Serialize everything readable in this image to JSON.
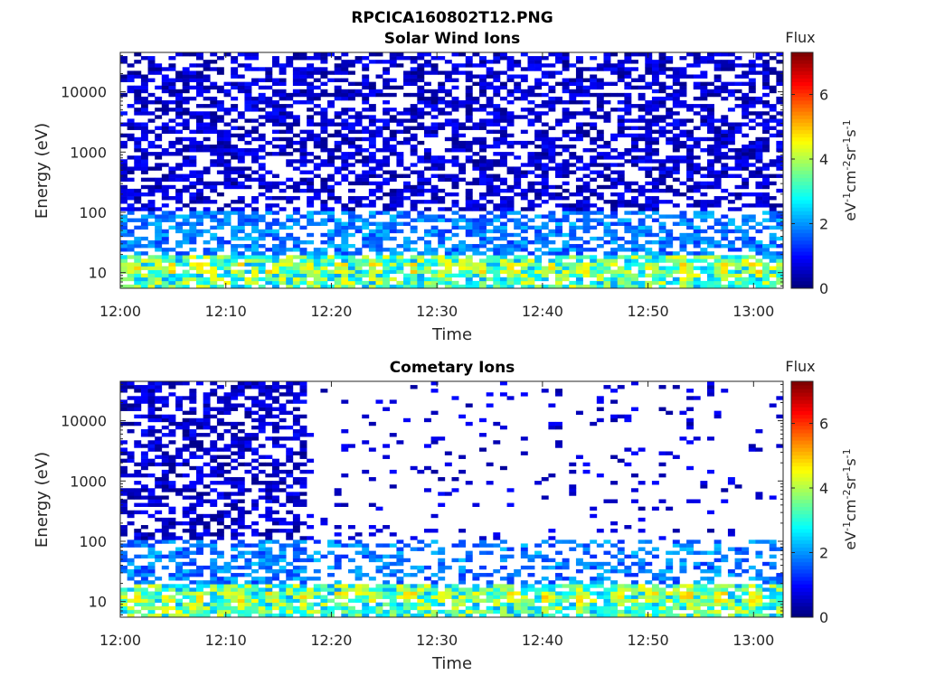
{
  "figure": {
    "title": "RPCICA160802T12.PNG"
  },
  "chart_data": [
    {
      "type": "heatmap",
      "title": "Solar Wind Ions",
      "xlabel": "Time",
      "ylabel": "Energy (eV)",
      "x_tick_labels": [
        "12:00",
        "12:10",
        "12:20",
        "12:30",
        "12:40",
        "12:50",
        "13:00"
      ],
      "y_tick_labels": [
        "10",
        "100",
        "1000",
        "10000"
      ],
      "y_scale": "log",
      "ylim": [
        5.5,
        45000
      ],
      "colorbar": {
        "title": "Flux",
        "label": "eV-1cm-2sr-1s-1",
        "ticks": [
          "0",
          "2",
          "4",
          "6"
        ],
        "range": [
          0,
          7.3
        ],
        "colormap": "jet"
      },
      "empty_region_after_minutes": null
    },
    {
      "type": "heatmap",
      "title": "Cometary Ions",
      "xlabel": "Time",
      "ylabel": "Energy (eV)",
      "x_tick_labels": [
        "12:00",
        "12:10",
        "12:20",
        "12:30",
        "12:40",
        "12:50",
        "13:00"
      ],
      "y_tick_labels": [
        "10",
        "100",
        "1000",
        "10000"
      ],
      "y_scale": "log",
      "ylim": [
        5.5,
        45000
      ],
      "colorbar": {
        "title": "Flux",
        "label": "eV-1cm-2sr-1s-1",
        "ticks": [
          "0",
          "2",
          "4",
          "6"
        ],
        "range": [
          0,
          7.3
        ],
        "colormap": "jet"
      },
      "empty_region_after_minutes": 17.5
    }
  ]
}
